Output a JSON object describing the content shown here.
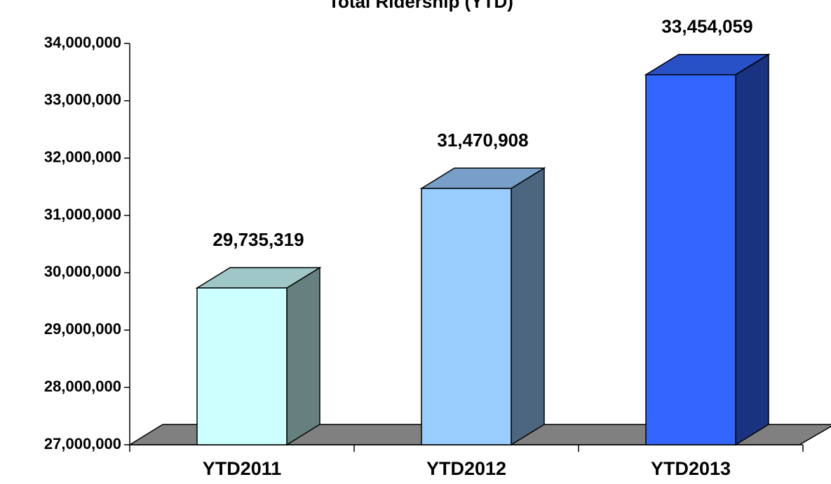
{
  "chart_data": {
    "type": "bar3d",
    "title": "Total Ridership (YTD)",
    "categories": [
      "YTD2011",
      "YTD2012",
      "YTD2013"
    ],
    "values": [
      29735319,
      31470908,
      33454059
    ],
    "value_labels": [
      "29,735,319",
      "31,470,908",
      "33,454,059"
    ],
    "colors": [
      "#ccffff",
      "#99ccff",
      "#3366ff"
    ],
    "ylim": [
      27000000,
      34000000
    ],
    "yticks": [
      {
        "value": 27000000,
        "label": "27,000,000"
      },
      {
        "value": 28000000,
        "label": "28,000,000"
      },
      {
        "value": 29000000,
        "label": "29,000,000"
      },
      {
        "value": 30000000,
        "label": "30,000,000"
      },
      {
        "value": 31000000,
        "label": "31,000,000"
      },
      {
        "value": 32000000,
        "label": "32,000,000"
      },
      {
        "value": 33000000,
        "label": "33,000,000"
      },
      {
        "value": 34000000,
        "label": "34,000,000"
      }
    ]
  }
}
